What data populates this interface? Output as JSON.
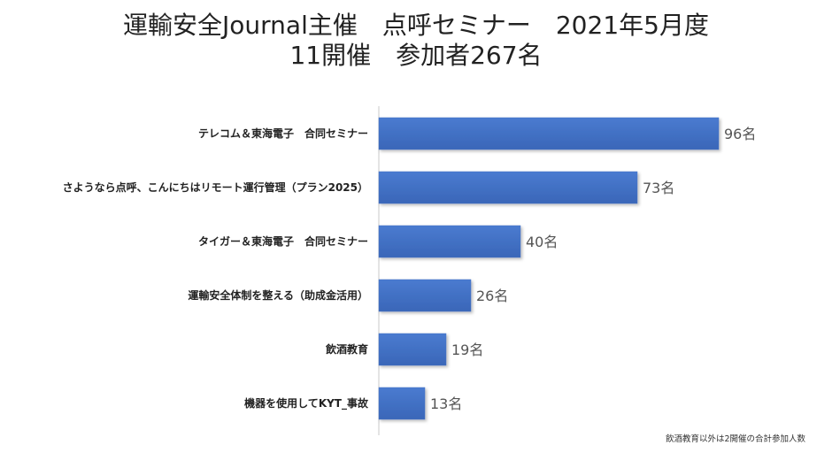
{
  "chart_data": {
    "type": "bar",
    "orientation": "horizontal",
    "title": "運輸安全Journal主催　点呼セミナー　2021年5月度",
    "subtitle": "11開催　参加者267名",
    "categories": [
      "テレコム＆東海電子　合同セミナー",
      "さようなら点呼、こんにちはリモート運行管理（プラン2025）",
      "タイガー＆東海電子　合同セミナー",
      "運輸安全体制を整える（助成金活用）",
      "飲酒教育",
      "機器を使用してKYT_事故"
    ],
    "values": [
      96,
      73,
      40,
      26,
      19,
      13
    ],
    "value_labels": [
      "96名",
      "73名",
      "40名",
      "26名",
      "19名",
      "13名"
    ],
    "xlim": [
      0,
      100
    ],
    "grid": false,
    "legend": "none",
    "bar_color": "#4472C4",
    "footnote": "飲酒教育以外は2開催の合計参加人数"
  }
}
